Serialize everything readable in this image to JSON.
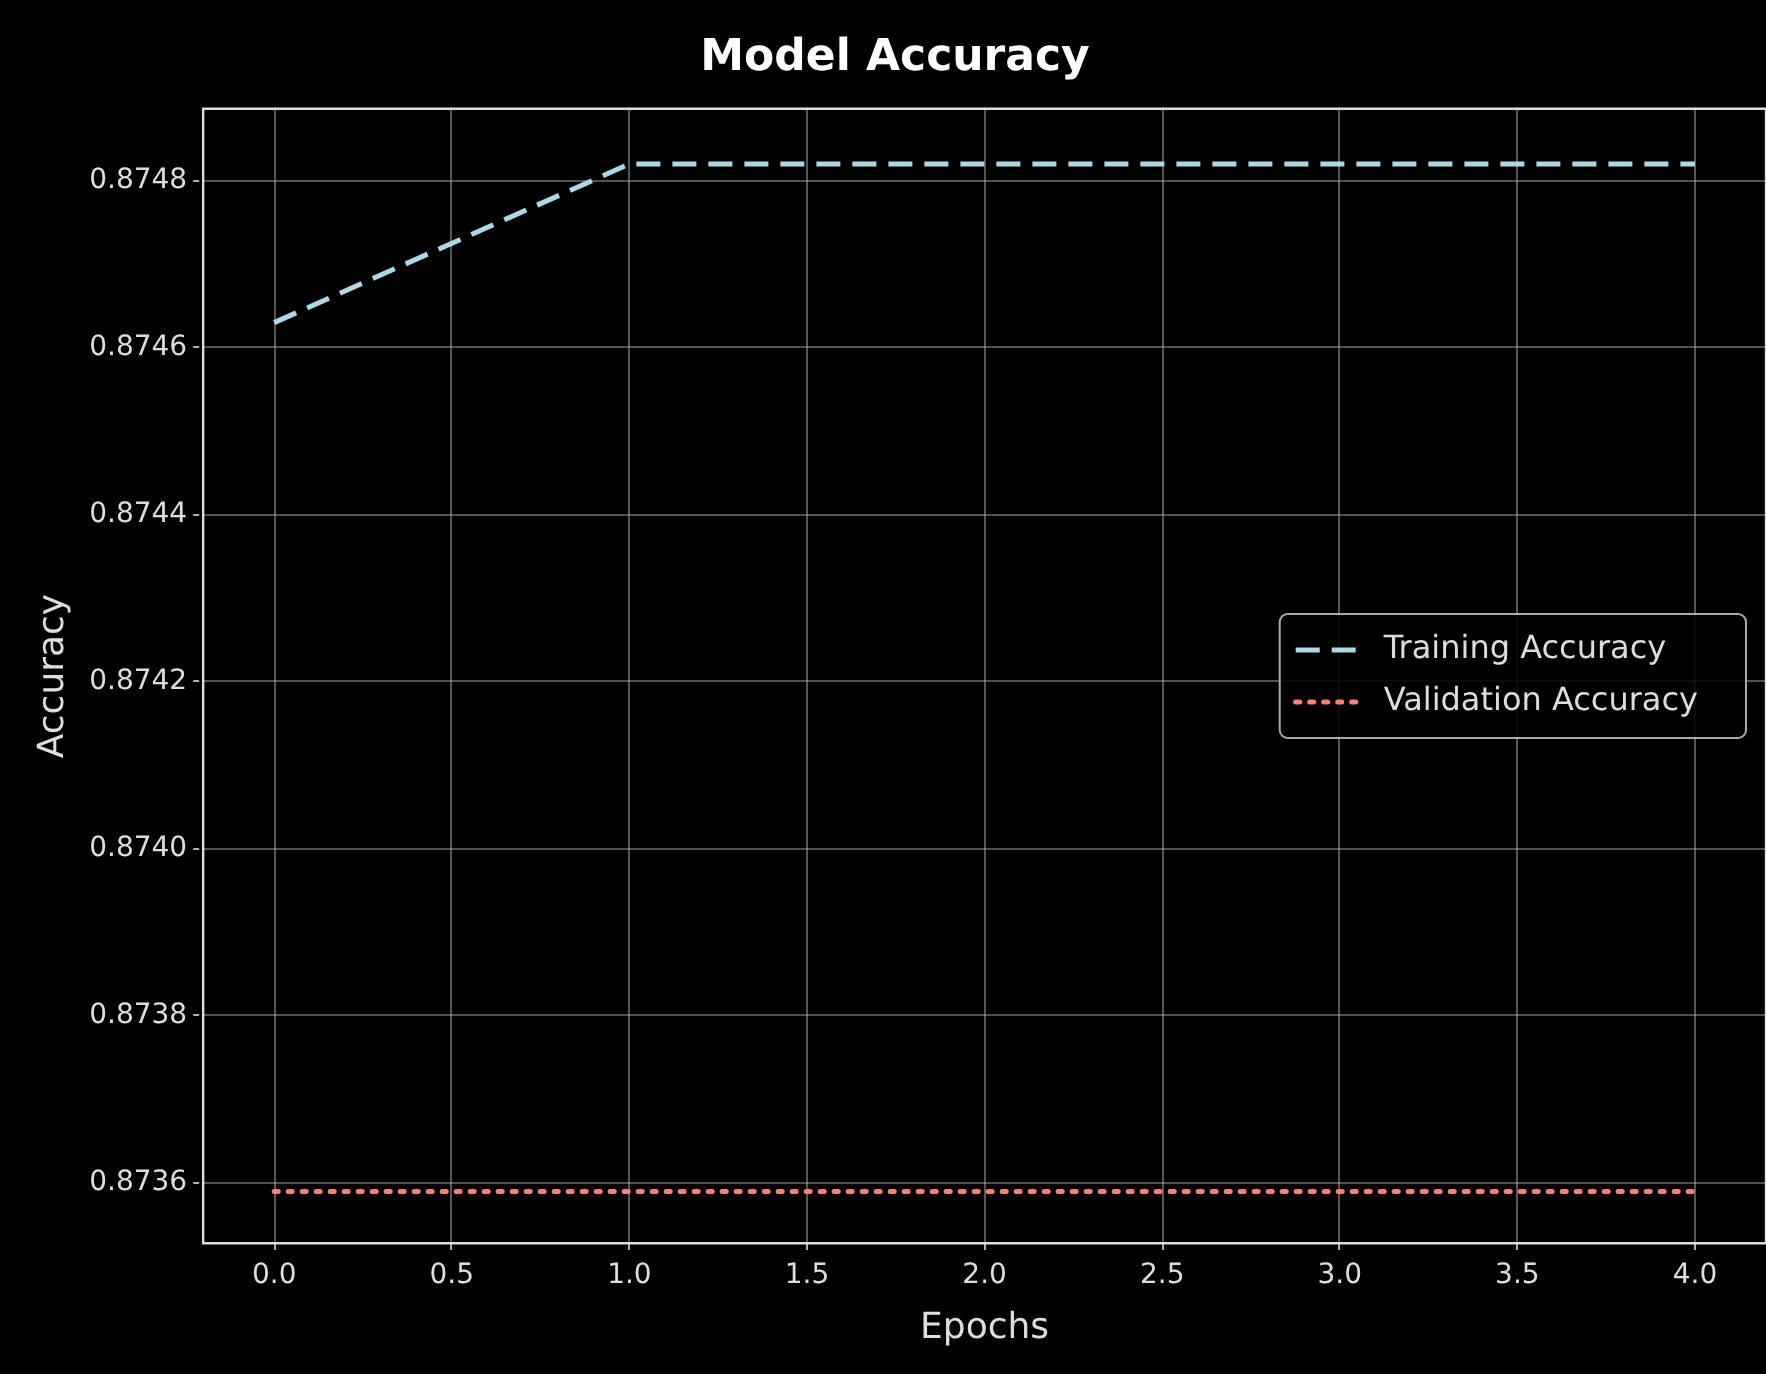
{
  "chart_data": {
    "type": "line",
    "title": "Model Accuracy",
    "xlabel": "Epochs",
    "ylabel": "Accuracy",
    "x": [
      0,
      1,
      2,
      3,
      4
    ],
    "series": [
      {
        "name": "Training Accuracy",
        "color": "#add8e6",
        "line_style": "dashed",
        "values": [
          0.87463,
          0.87482,
          0.87482,
          0.87482,
          0.87482
        ]
      },
      {
        "name": "Validation Accuracy",
        "color": "#fa8072",
        "line_style": "dotted",
        "values": [
          0.87359,
          0.87359,
          0.87359,
          0.87359,
          0.87359
        ]
      }
    ],
    "xlim": [
      -0.2,
      4.2
    ],
    "xticks": [
      {
        "value": 0,
        "label": "0.0"
      },
      0.5,
      {
        "value": 1,
        "label": "1.0"
      },
      1.5,
      {
        "value": 2,
        "label": "2.0"
      },
      2.5,
      {
        "value": 3,
        "label": "3.0"
      },
      3.5,
      {
        "value": 4,
        "label": "4.0"
      }
    ],
    "ylim": [
      0.873528,
      0.874886
    ],
    "yticks": [
      {
        "value": 0.8736,
        "label": "0.8736"
      },
      {
        "value": 0.8738,
        "label": "0.8738"
      },
      {
        "value": 0.874,
        "label": "0.8740"
      },
      {
        "value": 0.8742,
        "label": "0.8742"
      },
      {
        "value": 0.8744,
        "label": "0.8744"
      },
      {
        "value": 0.8746,
        "label": "0.8746"
      },
      {
        "value": 0.8748,
        "label": "0.8748"
      }
    ],
    "grid": true,
    "legend": "right",
    "marker": "none"
  }
}
